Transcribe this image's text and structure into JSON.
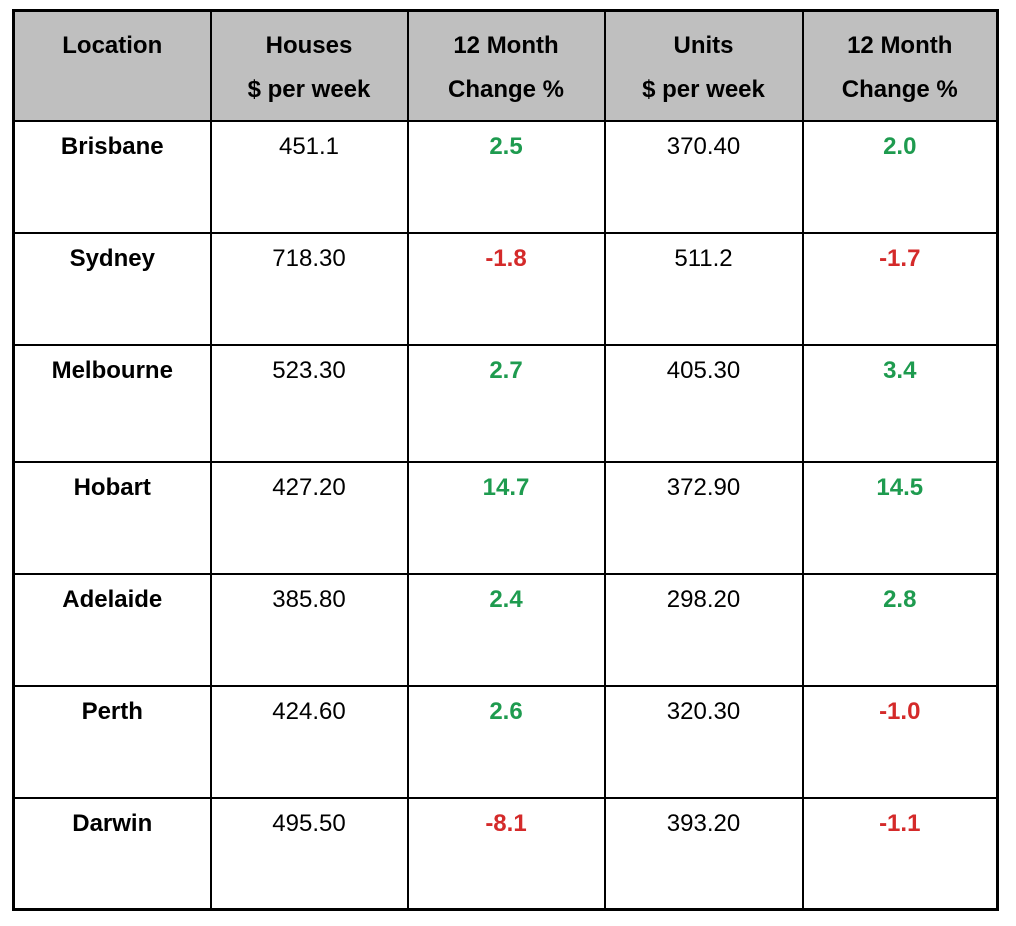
{
  "header": {
    "location": "Location",
    "houses_line1": "Houses",
    "houses_line2": "$ per week",
    "houses_change_line1": "12 Month",
    "houses_change_line2": "Change %",
    "units_line1": "Units",
    "units_line2": "$ per week",
    "units_change_line1": "12 Month",
    "units_change_line2": "Change %"
  },
  "colors": {
    "header_bg": "#bfbfbf",
    "positive": "#1e9b4f",
    "negative": "#d42a2a"
  },
  "rows": [
    {
      "location": "Brisbane",
      "houses": "451.1",
      "houses_change": "2.5",
      "units": "370.40",
      "units_change": "2.0"
    },
    {
      "location": "Sydney",
      "houses": "718.30",
      "houses_change": "-1.8",
      "units": "511.2",
      "units_change": "-1.7"
    },
    {
      "location": "Melbourne",
      "houses": "523.30",
      "houses_change": "2.7",
      "units": "405.30",
      "units_change": "3.4"
    },
    {
      "location": "Hobart",
      "houses": "427.20",
      "houses_change": "14.7",
      "units": "372.90",
      "units_change": "14.5"
    },
    {
      "location": "Adelaide",
      "houses": "385.80",
      "houses_change": "2.4",
      "units": "298.20",
      "units_change": "2.8"
    },
    {
      "location": "Perth",
      "houses": "424.60",
      "houses_change": "2.6",
      "units": "320.30",
      "units_change": "-1.0"
    },
    {
      "location": "Darwin",
      "houses": "495.50",
      "houses_change": "-8.1",
      "units": "393.20",
      "units_change": "-1.1"
    }
  ]
}
